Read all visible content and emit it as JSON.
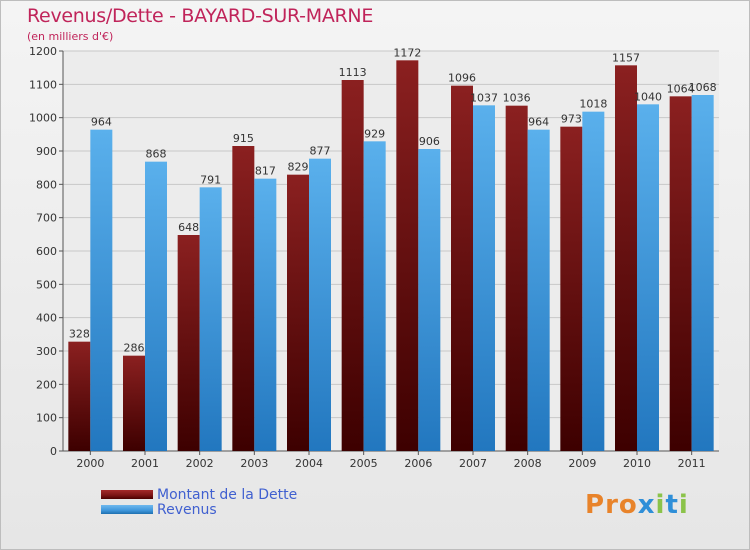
{
  "title": "Revenus/Dette - BAYARD-SUR-MARNE",
  "subtitle": "(en milliers d'€)",
  "colors": {
    "dette": "#7a1414",
    "revenus": "#3f97dc",
    "title": "#c0245a",
    "legend": "#4060d0"
  },
  "legend": {
    "dette_label": "Montant de la Dette",
    "revenus_label": "Revenus"
  },
  "logo": {
    "text": "Proxiti"
  },
  "chart_data": {
    "type": "bar",
    "categories": [
      "2000",
      "2001",
      "2002",
      "2003",
      "2004",
      "2005",
      "2006",
      "2007",
      "2008",
      "2009",
      "2010",
      "2011"
    ],
    "series": [
      {
        "name": "Montant de la Dette",
        "values": [
          328,
          286,
          648,
          915,
          829,
          1113,
          1172,
          1096,
          1036,
          973,
          1157,
          1064
        ]
      },
      {
        "name": "Revenus",
        "values": [
          964,
          868,
          791,
          817,
          877,
          929,
          906,
          1037,
          964,
          1018,
          1040,
          1068
        ]
      }
    ],
    "ylim": [
      0,
      1200
    ],
    "yticks": [
      0,
      100,
      200,
      300,
      400,
      500,
      600,
      700,
      800,
      900,
      1000,
      1100,
      1200
    ],
    "grid": true,
    "legend_position": "bottom-left"
  }
}
